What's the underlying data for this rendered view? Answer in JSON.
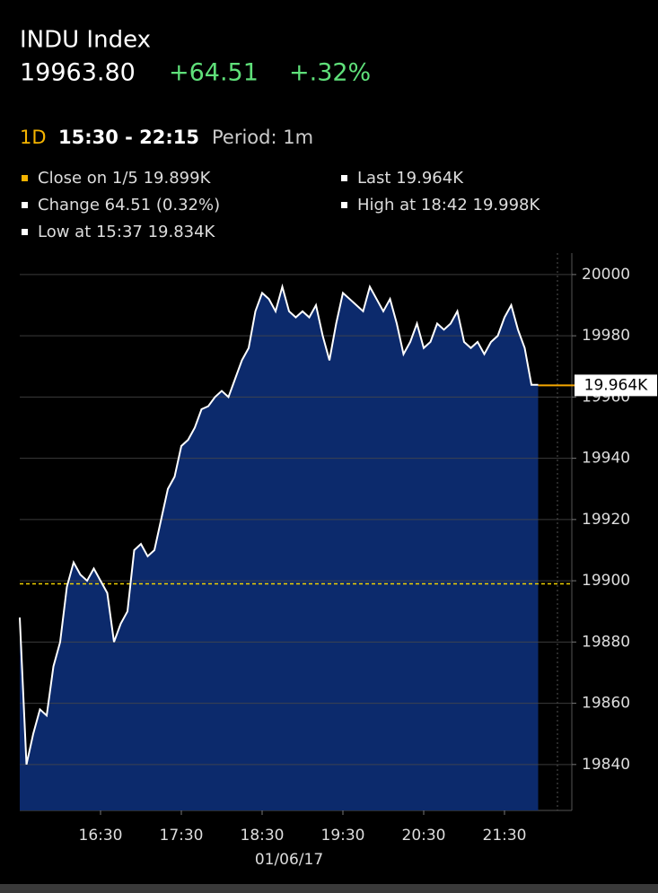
{
  "header": {
    "title": "INDU Index",
    "price": "19963.80",
    "change": "+64.51",
    "change_pct": "+.32%",
    "range": "1D",
    "time_span": "15:30 - 22:15",
    "period": "Period: 1m"
  },
  "legend": [
    {
      "text": "Close on 1/5 19.899K",
      "color": "#f5b400"
    },
    {
      "text": "Last 19.964K",
      "color": "#ffffff"
    },
    {
      "text": "Change 64.51 (0.32%)",
      "color": "#ffffff"
    },
    {
      "text": "High at 18:42 19.998K",
      "color": "#ffffff"
    },
    {
      "text": "Low at 15:37 19.834K",
      "color": "#ffffff"
    }
  ],
  "chart_data": {
    "type": "area",
    "x": [
      "15:30",
      "15:35",
      "15:40",
      "15:45",
      "15:50",
      "15:55",
      "16:00",
      "16:05",
      "16:10",
      "16:15",
      "16:20",
      "16:25",
      "16:30",
      "16:35",
      "16:40",
      "16:45",
      "16:50",
      "16:55",
      "17:00",
      "17:05",
      "17:10",
      "17:15",
      "17:20",
      "17:25",
      "17:30",
      "17:35",
      "17:40",
      "17:45",
      "17:50",
      "17:55",
      "18:00",
      "18:05",
      "18:10",
      "18:15",
      "18:20",
      "18:25",
      "18:30",
      "18:35",
      "18:40",
      "18:45",
      "18:50",
      "18:55",
      "19:00",
      "19:05",
      "19:10",
      "19:15",
      "19:20",
      "19:25",
      "19:30",
      "19:35",
      "19:40",
      "19:45",
      "19:50",
      "19:55",
      "20:00",
      "20:05",
      "20:10",
      "20:15",
      "20:20",
      "20:25",
      "20:30",
      "20:35",
      "20:40",
      "20:45",
      "20:50",
      "20:55",
      "21:00",
      "21:05",
      "21:10",
      "21:15",
      "21:20",
      "21:25",
      "21:30",
      "21:35",
      "21:40",
      "21:45",
      "21:50",
      "21:55"
    ],
    "values": [
      19888,
      19840,
      19850,
      19858,
      19856,
      19872,
      19880,
      19898,
      19906,
      19902,
      19900,
      19904,
      19900,
      19896,
      19880,
      19886,
      19890,
      19910,
      19912,
      19908,
      19910,
      19920,
      19930,
      19934,
      19944,
      19946,
      19950,
      19956,
      19957,
      19960,
      19962,
      19960,
      19966,
      19972,
      19976,
      19988,
      19994,
      19992,
      19988,
      19996,
      19988,
      19986,
      19988,
      19986,
      19990,
      19980,
      19972,
      19984,
      19994,
      19992,
      19990,
      19988,
      19996,
      19992,
      19988,
      19992,
      19984,
      19974,
      19978,
      19984,
      19976,
      19978,
      19984,
      19982,
      19984,
      19988,
      19978,
      19976,
      19978,
      19974,
      19978,
      19980,
      19986,
      19990,
      19982,
      19976,
      19964,
      19964
    ],
    "color": "#ffffff",
    "fill": "#0c2a6c",
    "ylim": [
      19825,
      20007
    ],
    "yticks": [
      19840,
      19860,
      19880,
      19900,
      19920,
      19940,
      19960,
      19980,
      20000
    ],
    "grid": true,
    "xticks": [
      "16:30",
      "17:30",
      "18:30",
      "19:30",
      "20:30",
      "21:30"
    ],
    "x_label": "01/06/17",
    "reference_line": {
      "value": 19899,
      "color": "#f0d000"
    },
    "last_value": {
      "value": 19963.8,
      "label": "19.964K",
      "color": "#f5a800"
    }
  }
}
